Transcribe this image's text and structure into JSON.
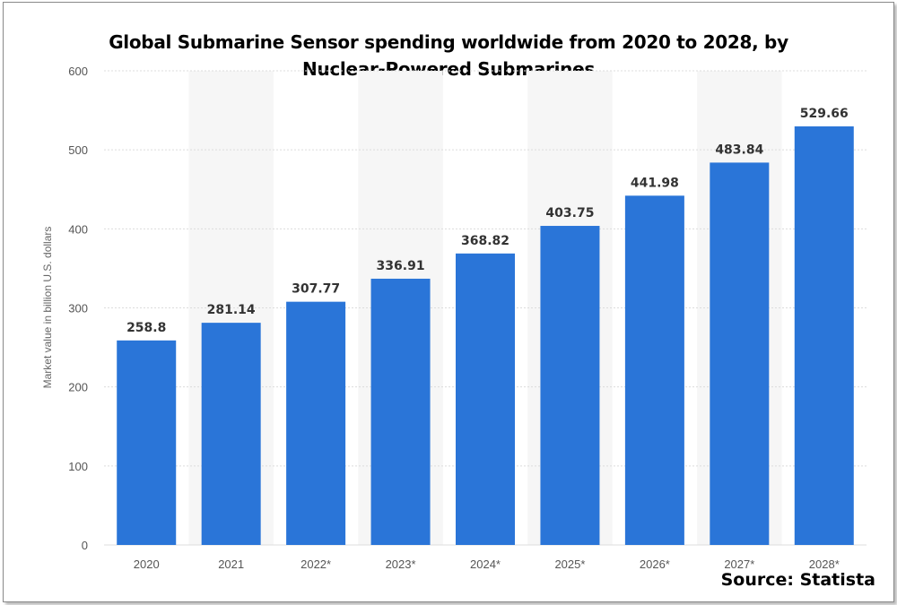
{
  "chart_data": {
    "type": "bar",
    "title_lines": [
      "Global Submarine Sensor spending worldwide from 2020 to 2028, by",
      "Nuclear-Powered Submarines"
    ],
    "source": "Source: Statista",
    "ylabel": "Market value in billion U.S. dollars",
    "xlabel": "",
    "categories": [
      "2020",
      "2021",
      "2022*",
      "2023*",
      "2024*",
      "2025*",
      "2026*",
      "2027*",
      "2028*"
    ],
    "values": [
      258.8,
      281.14,
      307.77,
      336.91,
      368.82,
      403.75,
      441.98,
      483.84,
      529.66
    ],
    "value_labels": [
      "258.8",
      "281.14",
      "307.77",
      "336.91",
      "368.82",
      "403.75",
      "441.98",
      "483.84",
      "529.66"
    ],
    "ylim": [
      0,
      600
    ],
    "yticks": [
      0,
      100,
      200,
      300,
      400,
      500,
      600
    ],
    "grid": true,
    "bar_color": "#2a75d8",
    "band_color": "#f6f6f6",
    "grid_color": "#dcdcdc"
  }
}
